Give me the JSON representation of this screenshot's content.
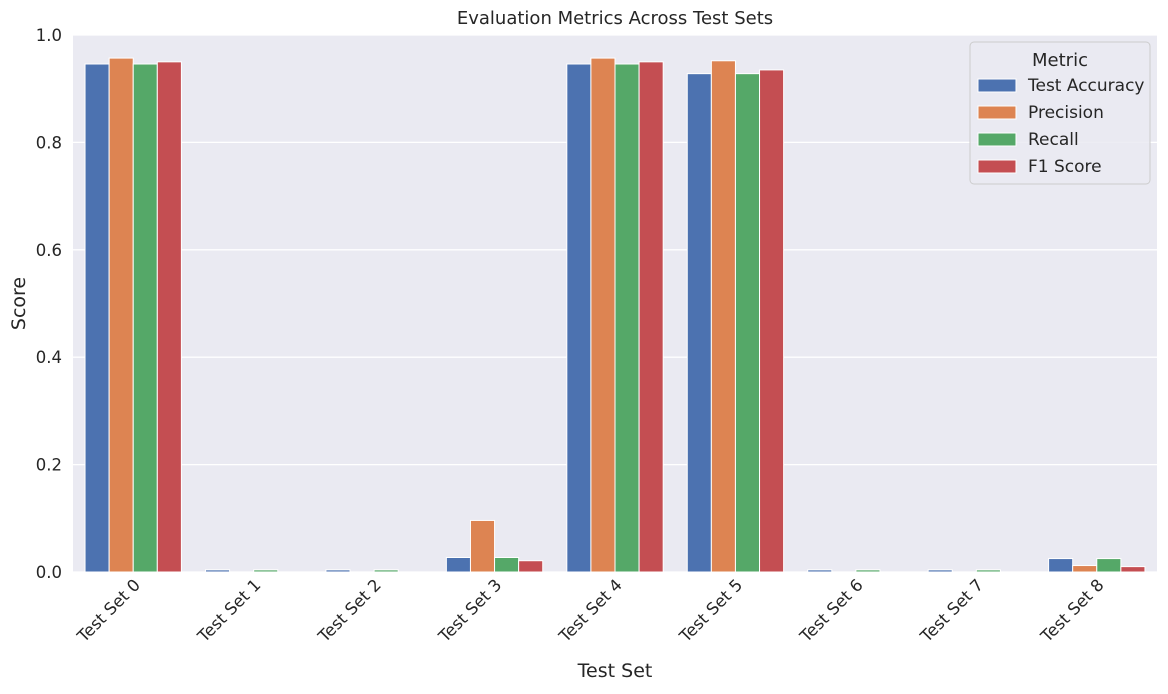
{
  "chart_data": {
    "type": "bar",
    "title": "Evaluation Metrics Across Test Sets",
    "xlabel": "Test Set",
    "ylabel": "Score",
    "ylim": [
      0,
      1.0
    ],
    "yticks": [
      "0.0",
      "0.2",
      "0.4",
      "0.6",
      "0.8",
      "1.0"
    ],
    "grid": true,
    "legend": {
      "title": "Metric",
      "placement": "top-right"
    },
    "categories": [
      "Test Set 0",
      "Test Set 1",
      "Test Set 2",
      "Test Set 3",
      "Test Set 4",
      "Test Set 5",
      "Test Set 6",
      "Test Set 7",
      "Test Set 8"
    ],
    "series": [
      {
        "name": "Test Accuracy",
        "color": "#4c72b0",
        "values": [
          0.946,
          0.004,
          0.004,
          0.027,
          0.946,
          0.928,
          0.004,
          0.004,
          0.025
        ]
      },
      {
        "name": "Precision",
        "color": "#dd8452",
        "values": [
          0.957,
          0.0,
          0.0,
          0.096,
          0.957,
          0.952,
          0.0,
          0.0,
          0.012
        ]
      },
      {
        "name": "Recall",
        "color": "#55a868",
        "values": [
          0.946,
          0.004,
          0.004,
          0.027,
          0.946,
          0.928,
          0.004,
          0.004,
          0.025
        ]
      },
      {
        "name": "F1 Score",
        "color": "#c44e52",
        "values": [
          0.95,
          0.0,
          0.0,
          0.021,
          0.95,
          0.935,
          0.0,
          0.0,
          0.01
        ]
      }
    ],
    "colors": {
      "plot_background": "#eaeaf2",
      "grid": "#ffffff",
      "text": "#262626"
    }
  }
}
